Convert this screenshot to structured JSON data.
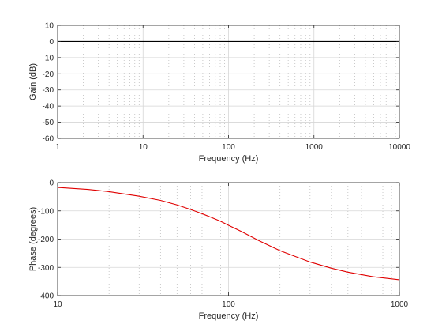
{
  "chart_data": [
    {
      "type": "line",
      "xscale": "log",
      "xlim": [
        1,
        10000
      ],
      "ylim": [
        -60,
        10
      ],
      "xlabel": "Frequency (Hz)",
      "ylabel": "Gain (dB)",
      "x_ticks": [
        "1",
        "10",
        "100",
        "1000",
        "10000"
      ],
      "y_ticks": [
        "10",
        "0",
        "-10",
        "-20",
        "-30",
        "-40",
        "-50",
        "-60"
      ],
      "grid": true,
      "series": [
        {
          "color": "#000000",
          "x": [
            1,
            10000
          ],
          "values": [
            0,
            0
          ]
        }
      ]
    },
    {
      "type": "line",
      "xscale": "log",
      "xlim": [
        10,
        1000
      ],
      "ylim": [
        -400,
        0
      ],
      "xlabel": "Frequency (Hz)",
      "ylabel": "Phase (degrees)",
      "x_ticks": [
        "10",
        "100",
        "1000"
      ],
      "y_ticks": [
        "0",
        "-100",
        "-200",
        "-300",
        "-400"
      ],
      "grid": true,
      "series": [
        {
          "color": "#e00000",
          "x": [
            10,
            15,
            20,
            30,
            40,
            50,
            60,
            70,
            80,
            90,
            100,
            120,
            150,
            200,
            300,
            400,
            500,
            700,
            1000
          ],
          "values": [
            -17,
            -24,
            -32,
            -48,
            -63,
            -79,
            -95,
            -110,
            -124,
            -137,
            -151,
            -174,
            -205,
            -241,
            -281,
            -303,
            -317,
            -333,
            -344
          ]
        }
      ]
    }
  ]
}
